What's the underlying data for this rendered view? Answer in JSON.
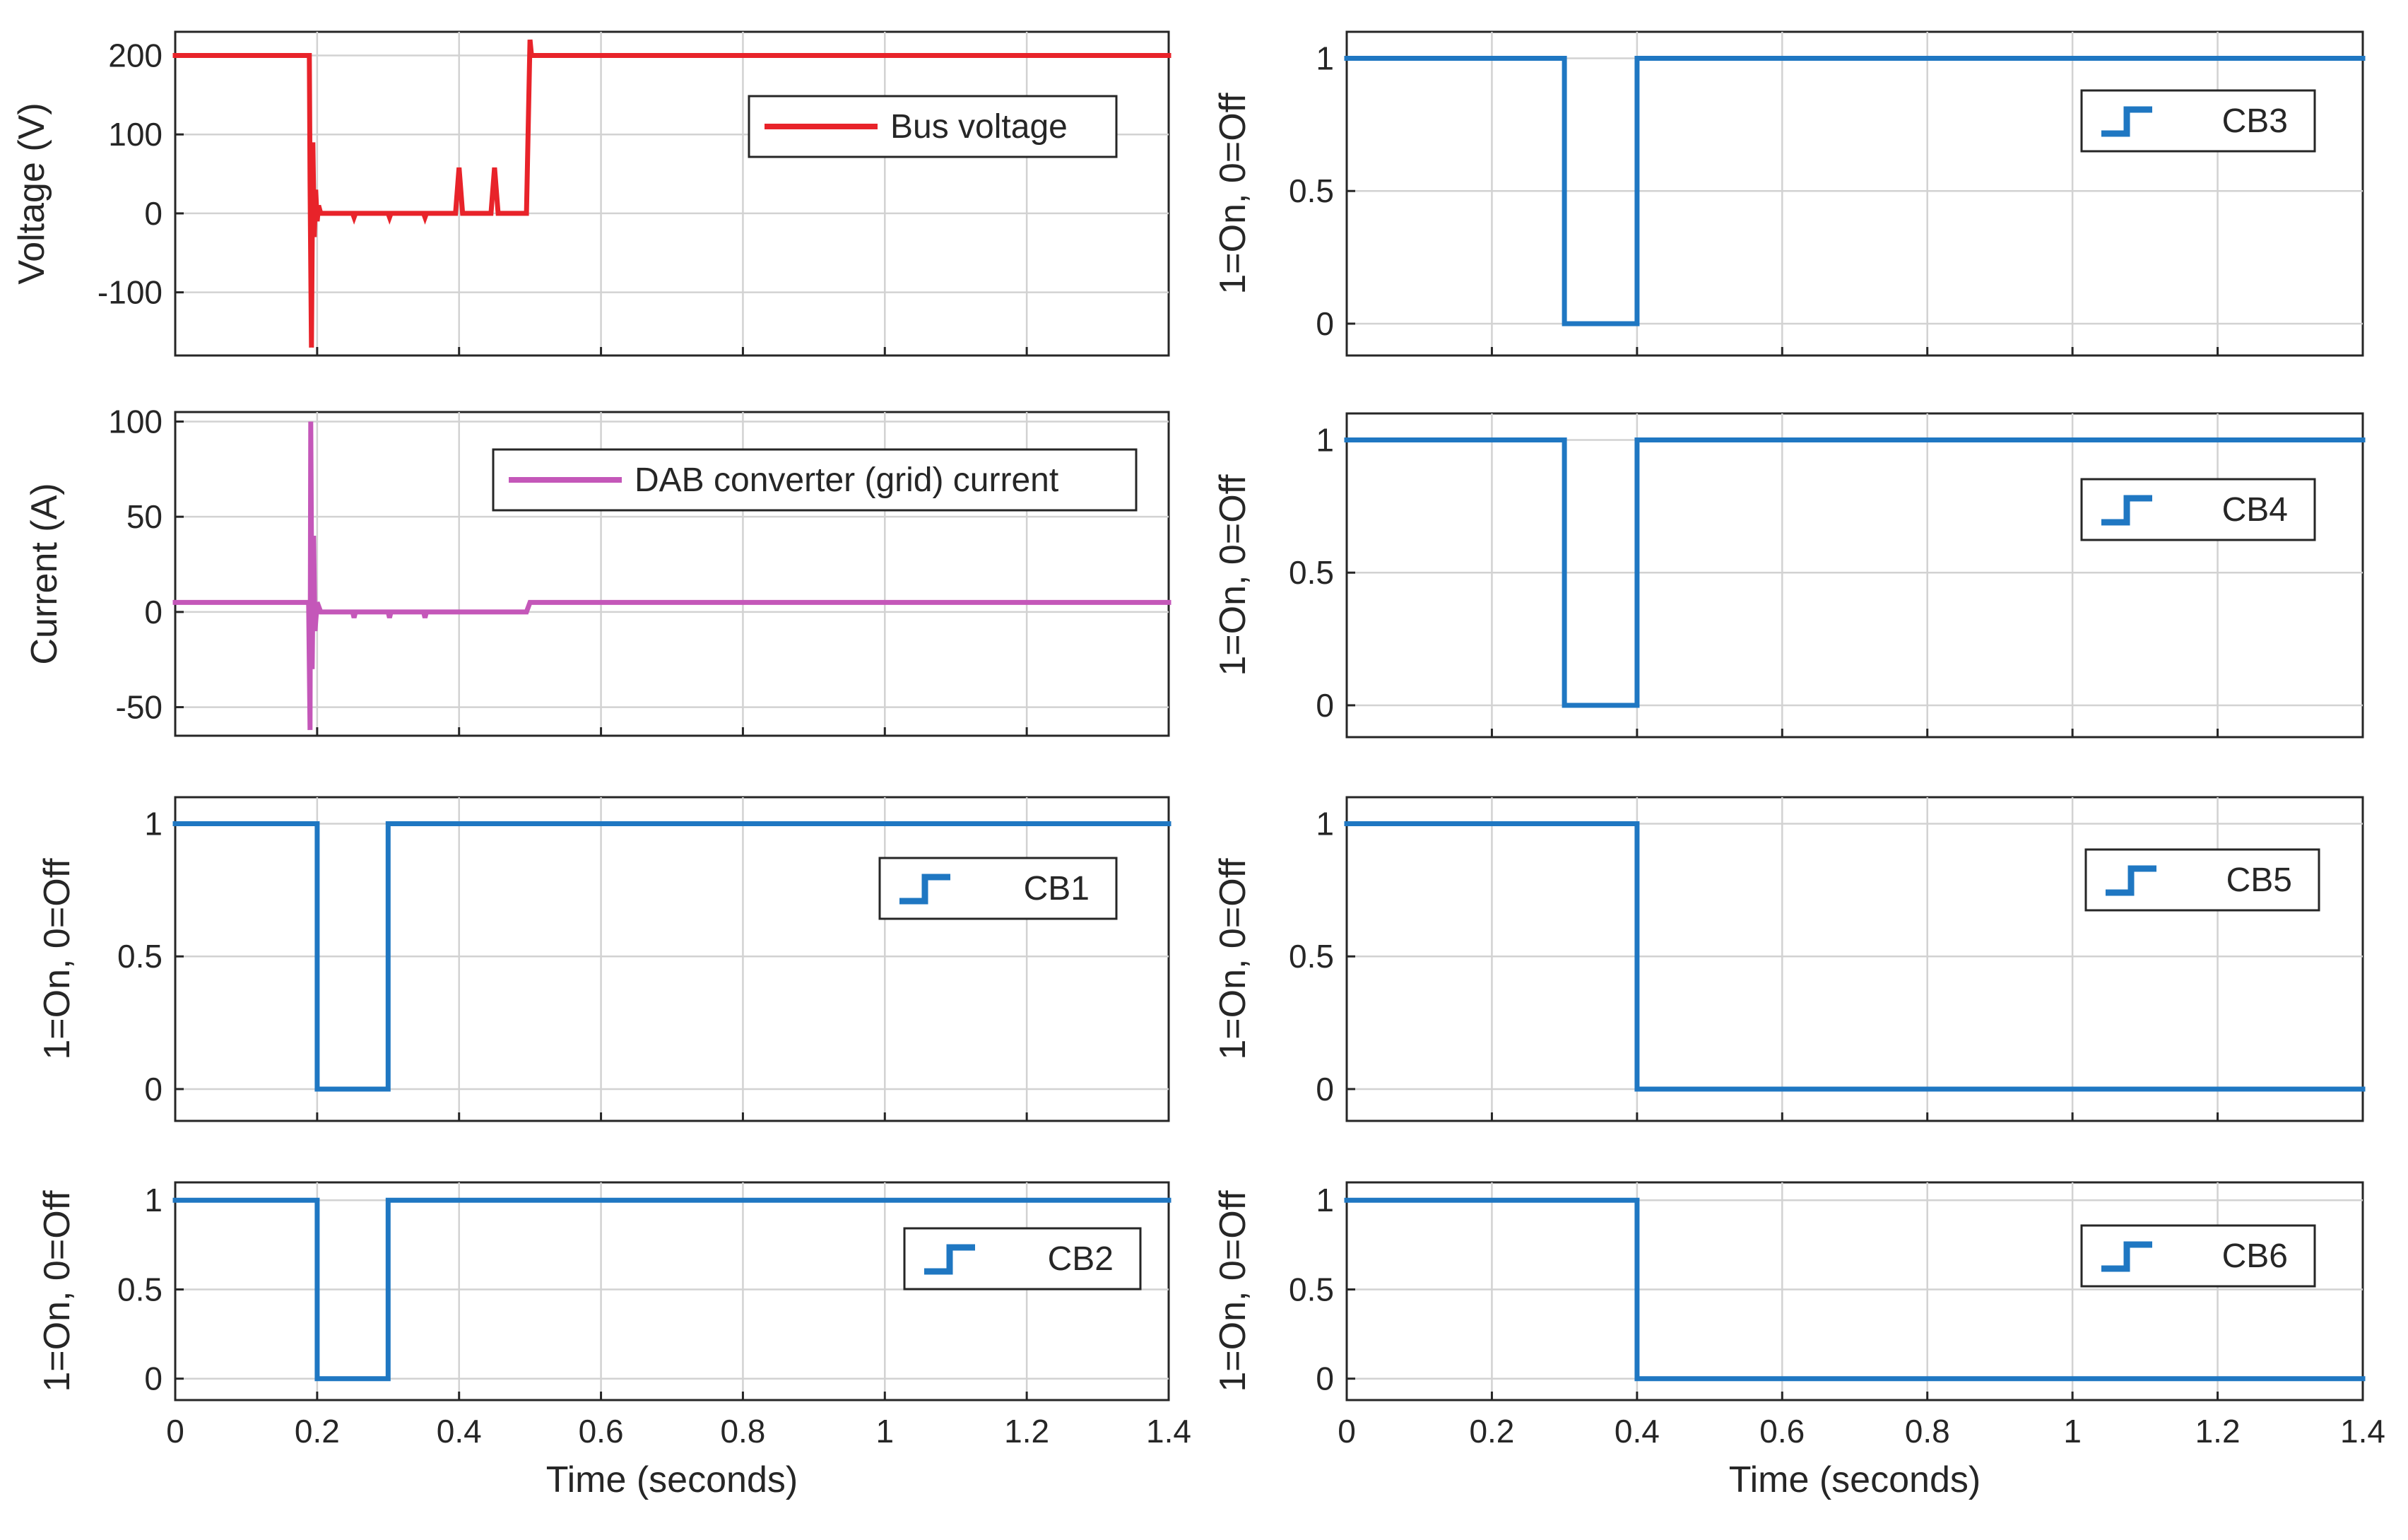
{
  "chart_data": [
    {
      "id": "bus_voltage",
      "type": "line",
      "ylabel": "Voltage (V)",
      "xlabel": "",
      "xlim": [
        0,
        1.4
      ],
      "ylim": [
        -180,
        230
      ],
      "x_ticks": [
        0,
        0.2,
        0.4,
        0.6,
        0.8,
        1.0,
        1.2,
        1.4
      ],
      "y_ticks": [
        {
          "value": 200,
          "label": "200"
        },
        {
          "value": 100,
          "label": "100"
        },
        {
          "value": 0,
          "label": "0"
        },
        {
          "value": -100,
          "label": "-100"
        }
      ],
      "grid": true,
      "legend_position": "top-right",
      "series": [
        {
          "name": "Bus voltage",
          "color": "#e8232a",
          "legend_style": "line",
          "x": [
            0,
            0.189,
            0.19,
            0.192,
            0.194,
            0.196,
            0.198,
            0.2,
            0.202,
            0.205,
            0.21,
            0.22,
            0.25,
            0.252,
            0.254,
            0.3,
            0.302,
            0.304,
            0.35,
            0.352,
            0.354,
            0.395,
            0.4,
            0.405,
            0.445,
            0.45,
            0.455,
            0.495,
            0.5,
            0.502,
            0.505,
            1.4
          ],
          "y": [
            200,
            200,
            40,
            -170,
            90,
            -30,
            30,
            -10,
            10,
            0,
            0,
            0,
            0,
            -5,
            0,
            0,
            -5,
            0,
            0,
            -5,
            0,
            0,
            58,
            0,
            0,
            58,
            0,
            0,
            220,
            200,
            200,
            200
          ]
        }
      ]
    },
    {
      "id": "dab_current",
      "type": "line",
      "ylabel": "Current (A)",
      "xlabel": "",
      "xlim": [
        0,
        1.4
      ],
      "ylim": [
        -65,
        105
      ],
      "x_ticks": [
        0,
        0.2,
        0.4,
        0.6,
        0.8,
        1.0,
        1.2,
        1.4
      ],
      "y_ticks": [
        {
          "value": 100,
          "label": "100"
        },
        {
          "value": 50,
          "label": "50"
        },
        {
          "value": 0,
          "label": "0"
        },
        {
          "value": -50,
          "label": "-50"
        }
      ],
      "grid": true,
      "legend_position": "top-right",
      "series": [
        {
          "name": "DAB converter (grid) current",
          "color": "#c457b9",
          "legend_style": "line",
          "x": [
            0,
            0.188,
            0.19,
            0.191,
            0.193,
            0.195,
            0.197,
            0.2,
            0.205,
            0.21,
            0.25,
            0.252,
            0.254,
            0.3,
            0.302,
            0.304,
            0.35,
            0.352,
            0.354,
            0.495,
            0.5,
            1.4
          ],
          "y": [
            5,
            5,
            -62,
            100,
            -30,
            40,
            -10,
            5,
            0,
            0,
            0,
            -3,
            0,
            0,
            -3,
            0,
            0,
            -3,
            0,
            0,
            5,
            5
          ]
        }
      ]
    },
    {
      "id": "cb1",
      "type": "line",
      "ylabel": "1=On, 0=Off",
      "xlabel": "",
      "xlim": [
        0,
        1.4
      ],
      "ylim": [
        -0.12,
        1.1
      ],
      "x_ticks": [
        0,
        0.2,
        0.4,
        0.6,
        0.8,
        1.0,
        1.2,
        1.4
      ],
      "y_ticks": [
        {
          "value": 1,
          "label": "1"
        },
        {
          "value": 0.5,
          "label": "0.5"
        },
        {
          "value": 0,
          "label": "0"
        }
      ],
      "grid": true,
      "legend_position": "right",
      "series": [
        {
          "name": "CB1",
          "color": "#1f77c2",
          "legend_style": "step",
          "x": [
            0,
            0.2,
            0.2,
            0.3,
            0.3,
            1.4
          ],
          "y": [
            1,
            1,
            0,
            0,
            1,
            1
          ]
        }
      ]
    },
    {
      "id": "cb2",
      "type": "line",
      "ylabel": "1=On, 0=Off",
      "xlabel": "Time (seconds)",
      "xlim": [
        0,
        1.4
      ],
      "ylim": [
        -0.12,
        1.1
      ],
      "x_ticks": [
        0,
        0.2,
        0.4,
        0.6,
        0.8,
        1.0,
        1.2,
        1.4
      ],
      "x_tick_labels": [
        "0",
        "0.2",
        "0.4",
        "0.6",
        "0.8",
        "1",
        "1.2",
        "1.4"
      ],
      "y_ticks": [
        {
          "value": 1,
          "label": "1"
        },
        {
          "value": 0.5,
          "label": "0.5"
        },
        {
          "value": 0,
          "label": "0"
        }
      ],
      "grid": true,
      "legend_position": "right",
      "series": [
        {
          "name": "CB2",
          "color": "#1f77c2",
          "legend_style": "step",
          "x": [
            0,
            0.2,
            0.2,
            0.3,
            0.3,
            1.4
          ],
          "y": [
            1,
            1,
            0,
            0,
            1,
            1
          ]
        }
      ]
    },
    {
      "id": "cb3",
      "type": "line",
      "ylabel": "1=On, 0=Off",
      "xlabel": "",
      "xlim": [
        0,
        1.4
      ],
      "ylim": [
        -0.12,
        1.1
      ],
      "x_ticks": [
        0,
        0.2,
        0.4,
        0.6,
        0.8,
        1.0,
        1.2,
        1.4
      ],
      "y_ticks": [
        {
          "value": 1,
          "label": "1"
        },
        {
          "value": 0.5,
          "label": "0.5"
        },
        {
          "value": 0,
          "label": "0"
        }
      ],
      "grid": true,
      "legend_position": "top-right",
      "series": [
        {
          "name": "CB3",
          "color": "#1f77c2",
          "legend_style": "step",
          "x": [
            0,
            0.3,
            0.3,
            0.4,
            0.4,
            1.4
          ],
          "y": [
            1,
            1,
            0,
            0,
            1,
            1
          ]
        }
      ]
    },
    {
      "id": "cb4",
      "type": "line",
      "ylabel": "1=On, 0=Off",
      "xlabel": "",
      "xlim": [
        0,
        1.4
      ],
      "ylim": [
        -0.12,
        1.1
      ],
      "x_ticks": [
        0,
        0.2,
        0.4,
        0.6,
        0.8,
        1.0,
        1.2,
        1.4
      ],
      "y_ticks": [
        {
          "value": 1,
          "label": "1"
        },
        {
          "value": 0.5,
          "label": "0.5"
        },
        {
          "value": 0,
          "label": "0"
        }
      ],
      "grid": true,
      "legend_position": "top-right",
      "series": [
        {
          "name": "CB4",
          "color": "#1f77c2",
          "legend_style": "step",
          "x": [
            0,
            0.3,
            0.3,
            0.4,
            0.4,
            1.4
          ],
          "y": [
            1,
            1,
            0,
            0,
            1,
            1
          ]
        }
      ]
    },
    {
      "id": "cb5",
      "type": "line",
      "ylabel": "1=On, 0=Off",
      "xlabel": "",
      "xlim": [
        0,
        1.4
      ],
      "ylim": [
        -0.12,
        1.1
      ],
      "x_ticks": [
        0,
        0.2,
        0.4,
        0.6,
        0.8,
        1.0,
        1.2,
        1.4
      ],
      "y_ticks": [
        {
          "value": 1,
          "label": "1"
        },
        {
          "value": 0.5,
          "label": "0.5"
        },
        {
          "value": 0,
          "label": "0"
        }
      ],
      "grid": true,
      "legend_position": "top-right",
      "series": [
        {
          "name": "CB5",
          "color": "#1f77c2",
          "legend_style": "step",
          "x": [
            0,
            0.4,
            0.4,
            1.4
          ],
          "y": [
            1,
            1,
            0,
            0
          ]
        }
      ]
    },
    {
      "id": "cb6",
      "type": "line",
      "ylabel": "1=On, 0=Off",
      "xlabel": "Time (seconds)",
      "xlim": [
        0,
        1.4
      ],
      "ylim": [
        -0.12,
        1.1
      ],
      "x_ticks": [
        0,
        0.2,
        0.4,
        0.6,
        0.8,
        1.0,
        1.2,
        1.4
      ],
      "x_tick_labels": [
        "0",
        "0.2",
        "0.4",
        "0.6",
        "0.8",
        "1",
        "1.2",
        "1.4"
      ],
      "y_ticks": [
        {
          "value": 1,
          "label": "1"
        },
        {
          "value": 0.5,
          "label": "0.5"
        },
        {
          "value": 0,
          "label": "0"
        }
      ],
      "grid": true,
      "legend_position": "right",
      "series": [
        {
          "name": "CB6",
          "color": "#1f77c2",
          "legend_style": "step",
          "x": [
            0,
            0.4,
            0.4,
            1.4
          ],
          "y": [
            1,
            1,
            0,
            0
          ]
        }
      ]
    }
  ]
}
